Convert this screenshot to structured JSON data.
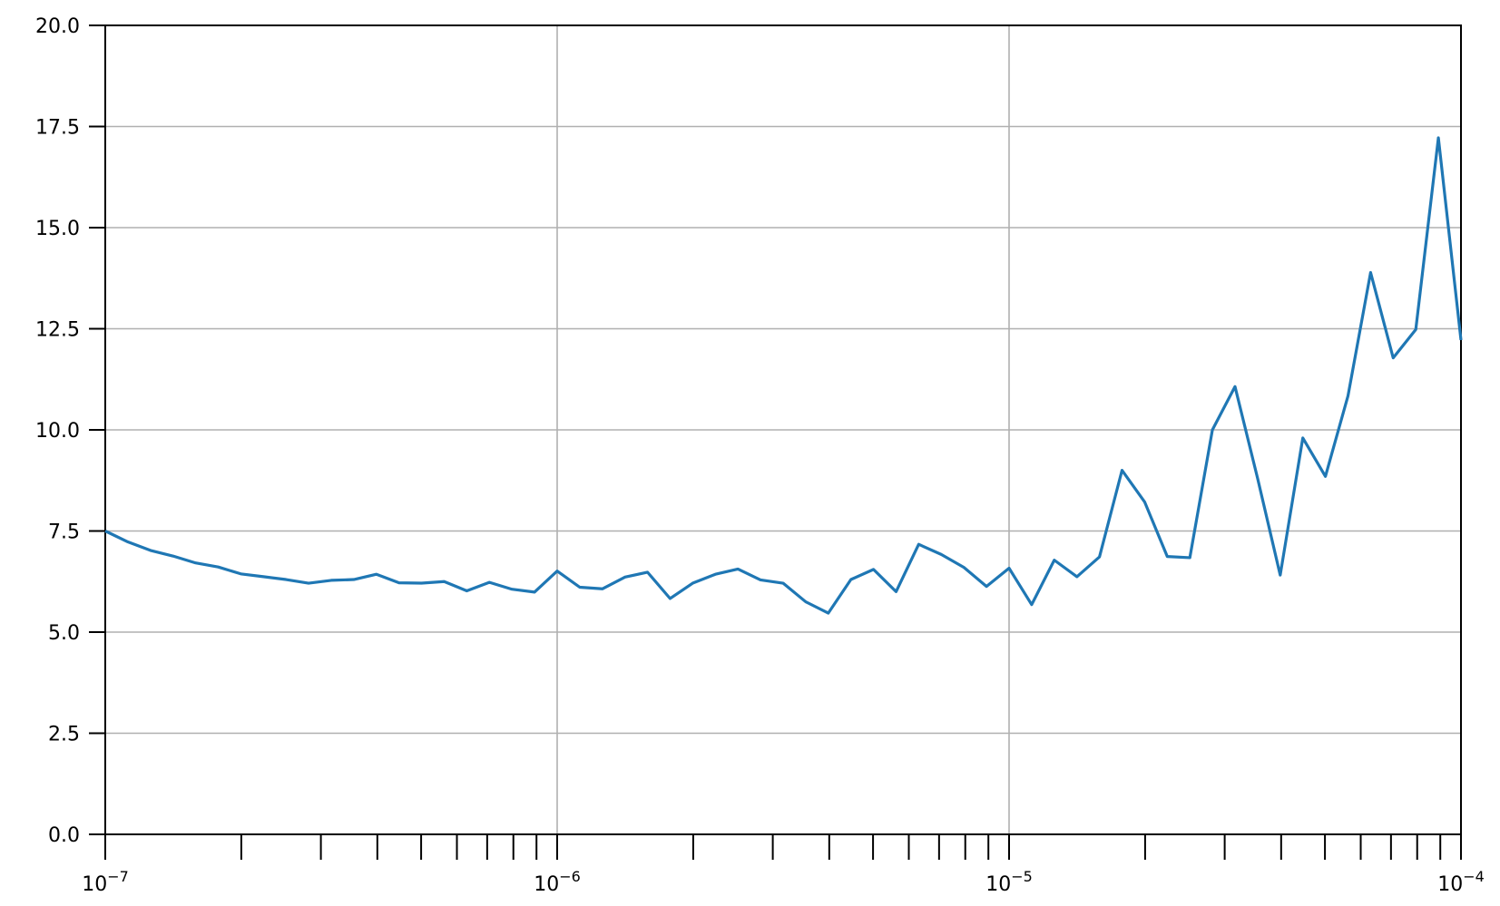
{
  "chart_data": {
    "type": "line",
    "title": "",
    "xlabel": "",
    "ylabel": "",
    "xscale": "log",
    "xlim": [
      1e-07,
      0.0001
    ],
    "ylim": [
      0,
      20
    ],
    "grid": true,
    "y_ticks": [
      "0.0",
      "2.5",
      "5.0",
      "7.5",
      "10.0",
      "12.5",
      "15.0",
      "17.5",
      "20.0"
    ],
    "x_ticks": [
      {
        "base": "10",
        "exp": "−7",
        "value": 1e-07
      },
      {
        "base": "10",
        "exp": "−6",
        "value": 1e-06
      },
      {
        "base": "10",
        "exp": "−5",
        "value": 1e-05
      },
      {
        "base": "10",
        "exp": "−4",
        "value": 0.0001
      }
    ],
    "colors": {
      "line": "#1f77b4",
      "grid": "#b0b0b0",
      "axes": "#000000"
    },
    "series": [
      {
        "x": [
          1e-07,
          1.122e-07,
          1.259e-07,
          1.413e-07,
          1.585e-07,
          1.778e-07,
          1.995e-07,
          2.239e-07,
          2.512e-07,
          2.818e-07,
          3.162e-07,
          3.548e-07,
          3.981e-07,
          4.467e-07,
          5.012e-07,
          5.623e-07,
          6.31e-07,
          7.079e-07,
          7.943e-07,
          8.913e-07,
          1e-06,
          1.122e-06,
          1.259e-06,
          1.413e-06,
          1.585e-06,
          1.778e-06,
          1.995e-06,
          2.239e-06,
          2.512e-06,
          2.818e-06,
          3.162e-06,
          3.548e-06,
          3.981e-06,
          4.467e-06,
          5.012e-06,
          5.623e-06,
          6.31e-06,
          7.079e-06,
          7.943e-06,
          8.913e-06,
          1e-05,
          1.122e-05,
          1.259e-05,
          1.413e-05,
          1.585e-05,
          1.778e-05,
          1.995e-05,
          2.239e-05,
          2.512e-05,
          2.818e-05,
          3.162e-05,
          3.548e-05,
          3.981e-05,
          4.467e-05,
          5.012e-05,
          5.623e-05,
          6.31e-05,
          7.079e-05,
          7.943e-05,
          8.913e-05,
          0.0001
        ],
        "y": [
          7.5,
          7.23,
          7.02,
          6.88,
          6.71,
          6.61,
          6.44,
          6.37,
          6.3,
          6.21,
          6.28,
          6.3,
          6.43,
          6.22,
          6.21,
          6.25,
          6.02,
          6.23,
          6.06,
          5.99,
          6.51,
          6.11,
          6.07,
          6.36,
          6.48,
          5.83,
          6.21,
          6.43,
          6.56,
          6.29,
          6.21,
          5.75,
          5.47,
          6.3,
          6.55,
          6.0,
          7.17,
          6.92,
          6.6,
          6.13,
          6.58,
          5.68,
          6.78,
          6.37,
          6.86,
          9.0,
          8.22,
          6.87,
          6.84,
          10.0,
          11.07,
          8.8,
          6.41,
          9.8,
          8.85,
          10.84,
          13.89,
          11.78,
          12.48,
          17.22,
          12.22
        ]
      }
    ]
  }
}
